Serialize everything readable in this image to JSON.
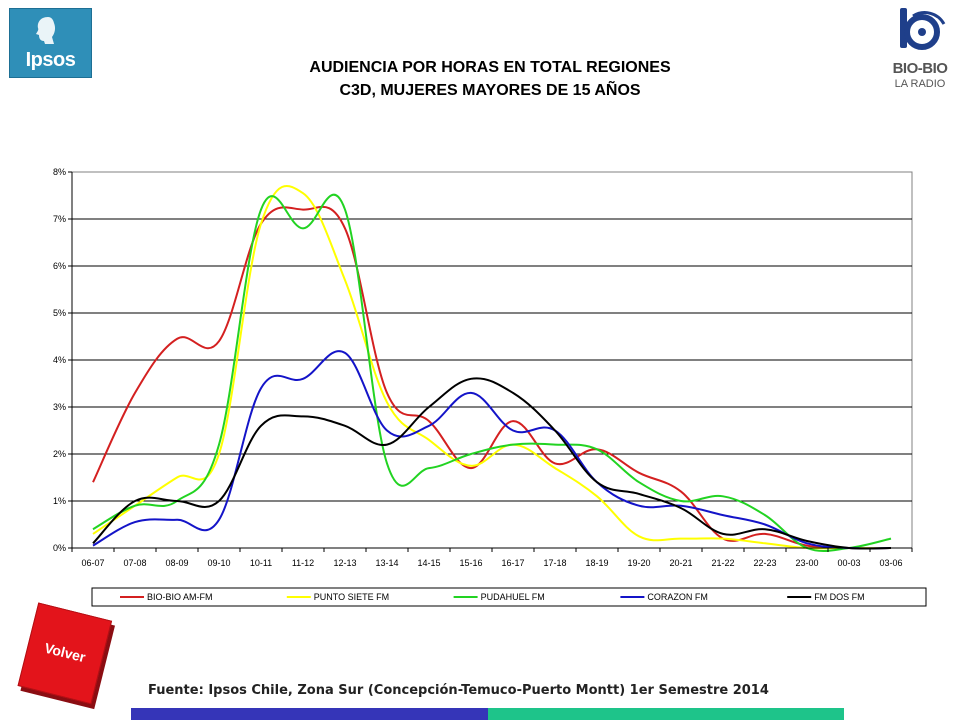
{
  "branding": {
    "left_logo_text": "Ipsos",
    "right_logo_text": "BIO-BIO",
    "right_logo_subtext": "LA RADIO"
  },
  "header": {
    "title_line1": "AUDIENCIA POR HORAS EN TOTAL REGIONES",
    "title_line2": "C3D, MUJERES MAYORES DE 15 AÑOS"
  },
  "colors": {
    "logo_blue": "#2f8fb8",
    "volver_red": "#e3141b",
    "footer_blue": "#3535b8",
    "footer_green": "#1ec48a"
  },
  "chart_data": {
    "type": "line",
    "title": "",
    "xlabel": "",
    "ylabel": "",
    "ylim": [
      0,
      8
    ],
    "y_ticks": [
      "0%",
      "1%",
      "2%",
      "3%",
      "4%",
      "5%",
      "6%",
      "7%",
      "8%"
    ],
    "grid": true,
    "legend_position": "bottom",
    "categories": [
      "06-07",
      "07-08",
      "08-09",
      "09-10",
      "10-11",
      "11-12",
      "12-13",
      "13-14",
      "14-15",
      "15-16",
      "16-17",
      "17-18",
      "18-19",
      "19-20",
      "20-21",
      "21-22",
      "22-23",
      "23-00",
      "00-03",
      "03-06"
    ],
    "series": [
      {
        "name": "BIO-BIO AM-FM",
        "color": "#d42020",
        "values": [
          1.4,
          3.3,
          4.45,
          4.4,
          6.9,
          7.2,
          6.8,
          3.3,
          2.7,
          1.7,
          2.7,
          1.8,
          2.1,
          1.6,
          1.2,
          0.2,
          0.3,
          0.05,
          0.0,
          0.0
        ]
      },
      {
        "name": "PUNTO SIETE FM",
        "color": "#ffff00",
        "values": [
          0.3,
          0.9,
          1.5,
          2.0,
          6.9,
          7.55,
          5.7,
          3.1,
          2.3,
          1.75,
          2.2,
          1.7,
          1.1,
          0.25,
          0.2,
          0.2,
          0.1,
          0.0,
          0.0,
          0.0
        ]
      },
      {
        "name": "PUDAHUEL FM",
        "color": "#22d322",
        "values": [
          0.4,
          0.9,
          1.0,
          2.2,
          7.2,
          6.8,
          7.2,
          1.8,
          1.7,
          2.0,
          2.2,
          2.2,
          2.1,
          1.4,
          1.0,
          1.1,
          0.7,
          0.0,
          0.0,
          0.2
        ]
      },
      {
        "name": "CORAZON FM",
        "color": "#1414c8",
        "values": [
          0.05,
          0.55,
          0.6,
          0.6,
          3.4,
          3.6,
          4.15,
          2.5,
          2.6,
          3.3,
          2.5,
          2.5,
          1.4,
          0.9,
          0.9,
          0.7,
          0.5,
          0.1,
          0.0,
          0.0
        ]
      },
      {
        "name": "FM DOS FM",
        "color": "#000000",
        "values": [
          0.1,
          1.0,
          1.0,
          1.0,
          2.6,
          2.8,
          2.6,
          2.2,
          3.0,
          3.6,
          3.3,
          2.5,
          1.4,
          1.15,
          0.85,
          0.3,
          0.4,
          0.15,
          0.0,
          0.0
        ]
      }
    ]
  },
  "navigation": {
    "back_label": "Volver"
  },
  "footer": {
    "source": "Fuente: Ipsos Chile, Zona Sur (Concepción-Temuco-Puerto Montt) 1er Semestre 2014"
  }
}
